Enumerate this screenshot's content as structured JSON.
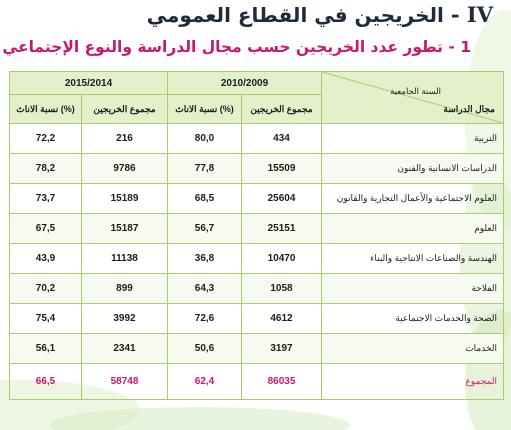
{
  "heading": {
    "number": "IV -",
    "title": "الخريجين في القطاع العمومي"
  },
  "subheading": "1 - تطور عدد الخريجين حسب مجال الدراسة والنوع الإجتماعي",
  "table": {
    "years": [
      "2015/2014",
      "2010/2009"
    ],
    "corner_top": "السنة الجامعية",
    "corner_bottom": "مجال الدراسة",
    "col_headers": [
      "نسبة الاناث (%)",
      "مجموع الخريجين",
      "نسبة الاناث (%)",
      "مجموع الخريجين"
    ],
    "rows": [
      {
        "pct_2015": "72,2",
        "total_2015": "216",
        "pct_2010": "80,0",
        "total_2010": "434",
        "label": "التربية"
      },
      {
        "pct_2015": "78,2",
        "total_2015": "9786",
        "pct_2010": "77,8",
        "total_2010": "15509",
        "label": "الدراسات الانسانية والفنون"
      },
      {
        "pct_2015": "73,7",
        "total_2015": "15189",
        "pct_2010": "68,5",
        "total_2010": "25604",
        "label": "العلوم الاجتماعية والأعمال التجارية والقانون"
      },
      {
        "pct_2015": "67,5",
        "total_2015": "15187",
        "pct_2010": "56,7",
        "total_2010": "25151",
        "label": "العلوم"
      },
      {
        "pct_2015": "43,9",
        "total_2015": "11138",
        "pct_2010": "36,8",
        "total_2010": "10470",
        "label": "الهندسة والصناعات الانتاجية والبناء"
      },
      {
        "pct_2015": "70,2",
        "total_2015": "899",
        "pct_2010": "64,3",
        "total_2010": "1058",
        "label": "الفلاحة"
      },
      {
        "pct_2015": "75,4",
        "total_2015": "3992",
        "pct_2010": "72,6",
        "total_2010": "4612",
        "label": "الصحة والخدمات الاجتماعية"
      },
      {
        "pct_2015": "56,1",
        "total_2015": "2341",
        "pct_2010": "50,6",
        "total_2010": "3197",
        "label": "الخدمات"
      }
    ],
    "total": {
      "pct_2015": "66,5",
      "total_2015": "58748",
      "pct_2010": "62,4",
      "total_2010": "86035",
      "label": "المجموع"
    }
  }
}
